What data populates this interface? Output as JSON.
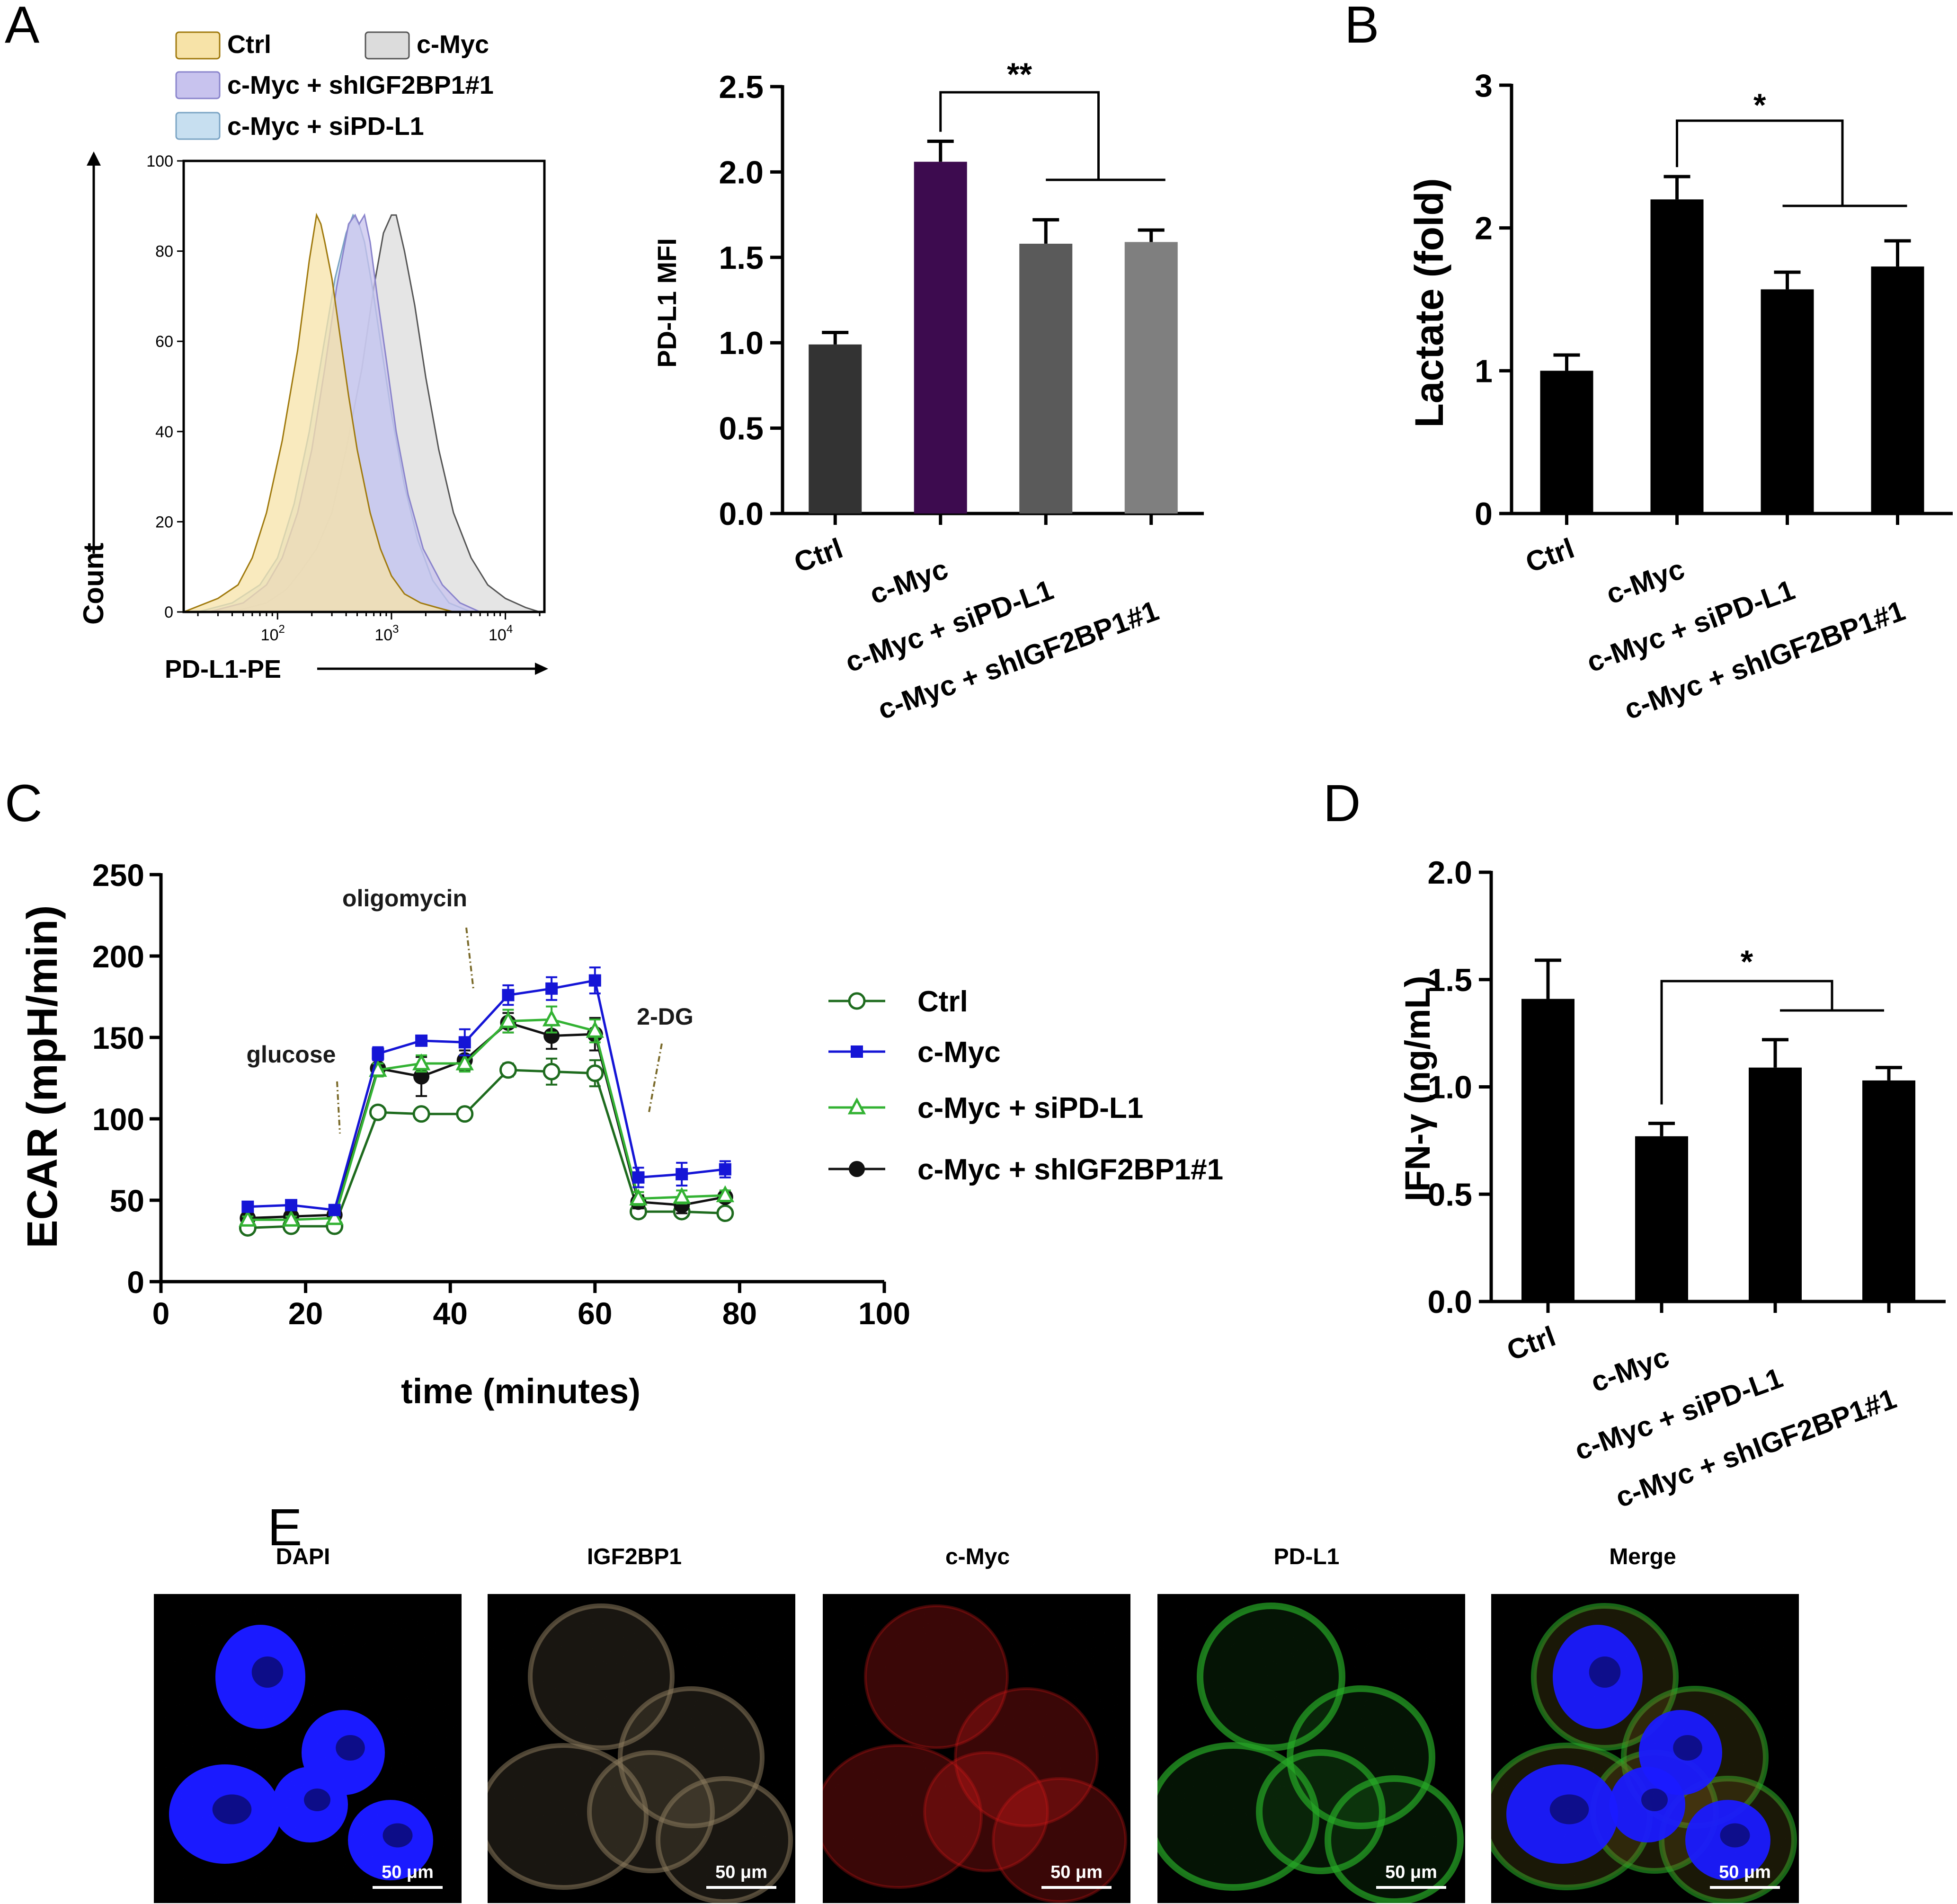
{
  "panel_labels": {
    "a": "A",
    "b": "B",
    "c": "C",
    "d": "D",
    "e": "E"
  },
  "chart_data": [
    {
      "id": "flow-histogram",
      "type": "area",
      "title": "",
      "xlabel": "PD-L1-PE",
      "ylabel": "Count",
      "xscale": "log",
      "xlim": [
        15,
        22000
      ],
      "ylim": [
        0,
        100
      ],
      "yticks": [
        0,
        20,
        40,
        60,
        80,
        100
      ],
      "xticks": [
        {
          "base": "10",
          "exp": "2",
          "value": 100
        },
        {
          "base": "10",
          "exp": "3",
          "value": 1000
        },
        {
          "base": "10",
          "exp": "4",
          "value": 10000
        }
      ],
      "legend": [
        "Ctrl",
        "c-Myc",
        "c-Myc + shIGF2BP1#1",
        "c-Myc + siPD-L1"
      ],
      "series": [
        {
          "name": "Ctrl",
          "fill": "#f7e3a8",
          "stroke": "#a07a0e",
          "x": [
            15,
            30,
            45,
            60,
            80,
            110,
            150,
            190,
            220,
            240,
            260,
            300,
            350,
            420,
            500,
            650,
            800,
            1000,
            1300,
            1800,
            2500,
            3500
          ],
          "y": [
            0,
            3,
            6,
            12,
            22,
            38,
            58,
            78,
            88,
            86,
            82,
            74,
            62,
            48,
            36,
            22,
            14,
            8,
            4,
            2,
            1,
            0
          ]
        },
        {
          "name": "c-Myc",
          "fill": "#dcdcdc",
          "stroke": "#555555",
          "x": [
            40,
            80,
            120,
            160,
            220,
            300,
            400,
            550,
            700,
            850,
            1000,
            1100,
            1300,
            1600,
            2000,
            2600,
            3500,
            5000,
            7000,
            10000,
            15000,
            20000
          ],
          "y": [
            0,
            2,
            5,
            9,
            14,
            22,
            36,
            54,
            72,
            84,
            88,
            88,
            80,
            68,
            52,
            36,
            22,
            12,
            6,
            3,
            1,
            0
          ]
        },
        {
          "name": "c-Myc + shIGF2BP1#1",
          "fill": "#c8c3ee",
          "stroke": "#8a84cc",
          "x": [
            25,
            50,
            80,
            110,
            150,
            200,
            260,
            330,
            420,
            480,
            520,
            580,
            650,
            750,
            900,
            1100,
            1400,
            1900,
            2800,
            4000,
            6000
          ],
          "y": [
            0,
            2,
            6,
            12,
            22,
            36,
            54,
            72,
            86,
            88,
            86,
            88,
            82,
            70,
            56,
            40,
            26,
            14,
            6,
            2,
            0
          ]
        },
        {
          "name": "c-Myc + siPD-L1",
          "fill": "#c7dff0",
          "stroke": "#7ba4c4",
          "x": [
            20,
            40,
            70,
            100,
            140,
            190,
            250,
            320,
            400,
            460,
            520,
            580,
            680,
            800,
            1000,
            1300,
            1700,
            2300,
            3200,
            5000
          ],
          "y": [
            0,
            2,
            6,
            12,
            24,
            40,
            58,
            74,
            84,
            88,
            86,
            82,
            72,
            60,
            44,
            28,
            16,
            7,
            2,
            0
          ]
        }
      ]
    },
    {
      "id": "pdl1-mfi",
      "type": "bar",
      "title": "",
      "xlabel": "",
      "ylabel": "PD-L1 MFI",
      "ylim": [
        0,
        2.5
      ],
      "yticks": [
        "0.0",
        "0.5",
        "1.0",
        "1.5",
        "2.0",
        "2.5"
      ],
      "categories": [
        "Ctrl",
        "c-Myc",
        "c-Myc + siPD-L1",
        "c-Myc + shIGF2BP1#1"
      ],
      "values": [
        0.99,
        2.06,
        1.58,
        1.59
      ],
      "errors": [
        0.07,
        0.12,
        0.14,
        0.07
      ],
      "colors": [
        "#333333",
        "#3d0b4f",
        "#5a5a5a",
        "#7f7f7f"
      ],
      "significance": "**"
    },
    {
      "id": "lactate",
      "type": "bar",
      "title": "",
      "xlabel": "",
      "ylabel": "Lactate (fold)",
      "ylim": [
        0,
        3
      ],
      "yticks": [
        "0",
        "1",
        "2",
        "3"
      ],
      "categories": [
        "Ctrl",
        "c-Myc",
        "c-Myc + siPD-L1",
        "c-Myc + shIGF2BP1#1"
      ],
      "values": [
        1.0,
        2.2,
        1.57,
        1.73
      ],
      "errors": [
        0.11,
        0.16,
        0.12,
        0.18
      ],
      "colors": [
        "#000000",
        "#000000",
        "#000000",
        "#000000"
      ],
      "significance": "*"
    },
    {
      "id": "ecar",
      "type": "line",
      "title": "",
      "xlabel": "time (minutes)",
      "ylabel": "ECAR  (mpH/min)",
      "xlim": [
        0,
        100
      ],
      "ylim": [
        0,
        250
      ],
      "xticks": [
        "0",
        "20",
        "40",
        "60",
        "80",
        "100"
      ],
      "yticks": [
        "0",
        "50",
        "100",
        "150",
        "200",
        "250"
      ],
      "x": [
        12,
        18,
        24,
        30,
        36,
        42,
        48,
        54,
        60,
        66,
        72,
        78
      ],
      "series": [
        {
          "name": "Ctrl",
          "color": "#1e6b1e",
          "marker": "circle-open",
          "values": [
            33,
            34,
            34,
            104,
            103,
            103,
            130,
            129,
            128,
            43,
            43,
            42
          ],
          "errors": [
            2,
            2,
            2,
            2,
            2,
            2,
            4,
            8,
            8,
            3,
            3,
            2
          ]
        },
        {
          "name": "c-Myc",
          "color": "#1515d6",
          "marker": "square",
          "values": [
            46,
            47,
            44,
            140,
            148,
            147,
            176,
            180,
            185,
            64,
            66,
            69
          ],
          "errors": [
            2,
            2,
            2,
            4,
            2,
            8,
            6,
            7,
            8,
            6,
            7,
            5
          ]
        },
        {
          "name": "c-Myc + siPD-L1",
          "color": "#33b233",
          "marker": "triangle-open",
          "values": [
            38,
            38,
            39,
            130,
            134,
            134,
            160,
            161,
            154,
            51,
            52,
            53
          ],
          "errors": [
            2,
            2,
            2,
            4,
            5,
            5,
            7,
            8,
            7,
            4,
            4,
            3
          ]
        },
        {
          "name": "c-Myc + shIGF2BP1#1",
          "color": "#111111",
          "marker": "circle",
          "values": [
            39,
            40,
            41,
            131,
            126,
            136,
            159,
            151,
            152,
            49,
            47,
            52
          ],
          "errors": [
            2,
            2,
            2,
            5,
            12,
            6,
            6,
            8,
            10,
            4,
            5,
            3
          ]
        }
      ],
      "annotations": [
        {
          "text": "glucose",
          "x": 24
        },
        {
          "text": "oligomycin",
          "x": 43
        },
        {
          "text": "2-DG",
          "x": 68
        }
      ]
    },
    {
      "id": "ifng",
      "type": "bar",
      "title": "",
      "xlabel": "",
      "ylabel": "IFN-γ (ng/mL)",
      "ylim": [
        0,
        2.0
      ],
      "yticks": [
        "0.0",
        "0.5",
        "1.0",
        "1.5",
        "2.0"
      ],
      "categories": [
        "Ctrl",
        "c-Myc",
        "c-Myc + siPD-L1",
        "c-Myc + shIGF2BP1#1"
      ],
      "values": [
        1.41,
        0.77,
        1.09,
        1.03
      ],
      "errors": [
        0.18,
        0.06,
        0.13,
        0.06
      ],
      "colors": [
        "#000000",
        "#000000",
        "#000000",
        "#000000"
      ],
      "significance": "*"
    }
  ],
  "microscopy": {
    "panels": [
      {
        "title": "DAPI",
        "scale": "50 μm"
      },
      {
        "title": "IGF2BP1",
        "scale": "50 μm"
      },
      {
        "title": "c-Myc",
        "scale": "50 μm"
      },
      {
        "title": "PD-L1",
        "scale": "50 μm"
      },
      {
        "title": "Merge",
        "scale": "50 μm"
      }
    ],
    "colors": {
      "dapi": "#1a1aff",
      "igf2bp1": "#8a7a5c",
      "cmyc": "#d01818",
      "pdl1": "#26a826"
    }
  }
}
